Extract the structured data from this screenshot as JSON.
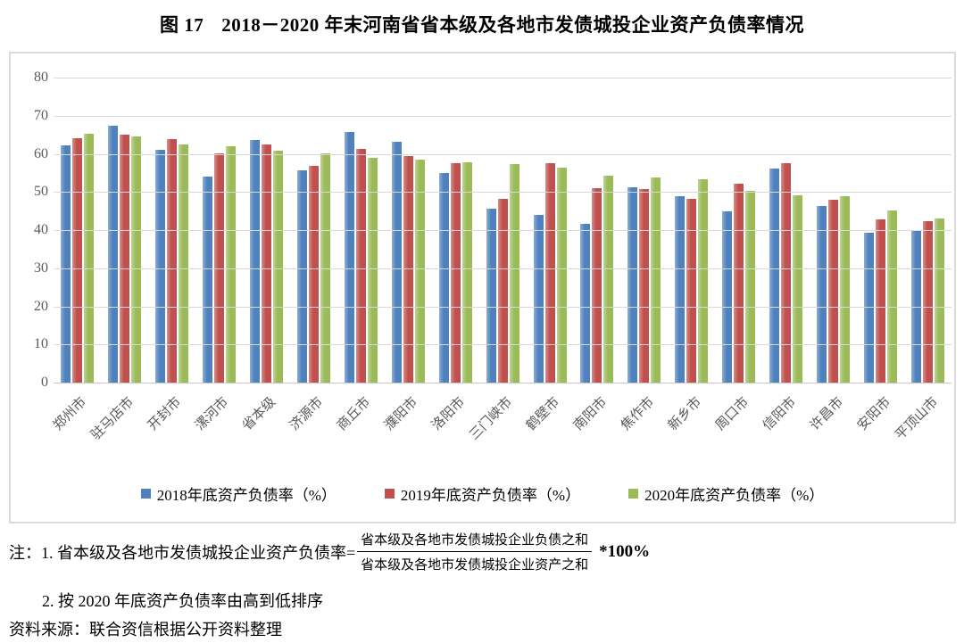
{
  "title": {
    "prefix": "图 17",
    "main": "2018－2020 年末河南省省本级及各地市发债城投企业资产负债率情况"
  },
  "chart_data": {
    "type": "bar",
    "categories": [
      "郑州市",
      "驻马店市",
      "开封市",
      "漯河市",
      "省本级",
      "济源市",
      "商丘市",
      "濮阳市",
      "洛阳市",
      "三门峡市",
      "鹤壁市",
      "南阳市",
      "焦作市",
      "新乡市",
      "周口市",
      "信阳市",
      "许昌市",
      "安阳市",
      "平顶山市"
    ],
    "series": [
      {
        "name": "2018年底资产负债率（%）",
        "color": "#4F81BD",
        "values": [
          62.2,
          67.3,
          61.0,
          54.0,
          63.6,
          55.6,
          65.8,
          63.2,
          54.9,
          45.7,
          44.0,
          41.6,
          51.3,
          48.9,
          44.9,
          56.1,
          46.3,
          39.4,
          39.8
        ]
      },
      {
        "name": "2019年底资产负债率（%）",
        "color": "#C0504D",
        "values": [
          64.0,
          65.0,
          63.8,
          60.2,
          62.4,
          56.9,
          61.2,
          59.4,
          57.6,
          48.3,
          57.5,
          51.1,
          50.7,
          48.2,
          52.2,
          57.5,
          48.0,
          42.8,
          42.3
        ]
      },
      {
        "name": "2020年底资产负债率（%）",
        "color": "#9BBB59",
        "values": [
          65.3,
          64.5,
          62.5,
          62.0,
          60.9,
          60.2,
          59.0,
          58.4,
          57.7,
          57.3,
          56.4,
          54.3,
          53.9,
          53.4,
          50.3,
          49.2,
          48.8,
          45.1,
          43.1
        ]
      }
    ],
    "ylim": [
      0,
      80
    ],
    "ytick_step": 10,
    "grid": true,
    "legend_position": "bottom",
    "sort_note": "sorted descending by 2020 values"
  },
  "notes": {
    "note1_prefix": "注：1. 省本级及各地市发债城投企业资产负债率=",
    "fraction_numerator": "省本级及各地市发债城投企业负债之和",
    "fraction_denominator": "省本级及各地市发债城投企业资产之和",
    "note1_suffix": "*100%",
    "note2": "2. 按 2020 年底资产负债率由高到低排序",
    "source": "资料来源：联合资信根据公开资料整理"
  },
  "colors": {
    "bar_2018": "#4F81BD",
    "bar_2019": "#C0504D",
    "bar_2020": "#9BBB59",
    "gridline": "#D9D9D9",
    "axis_text": "#595959",
    "frame_border": "#DBDBDB"
  }
}
